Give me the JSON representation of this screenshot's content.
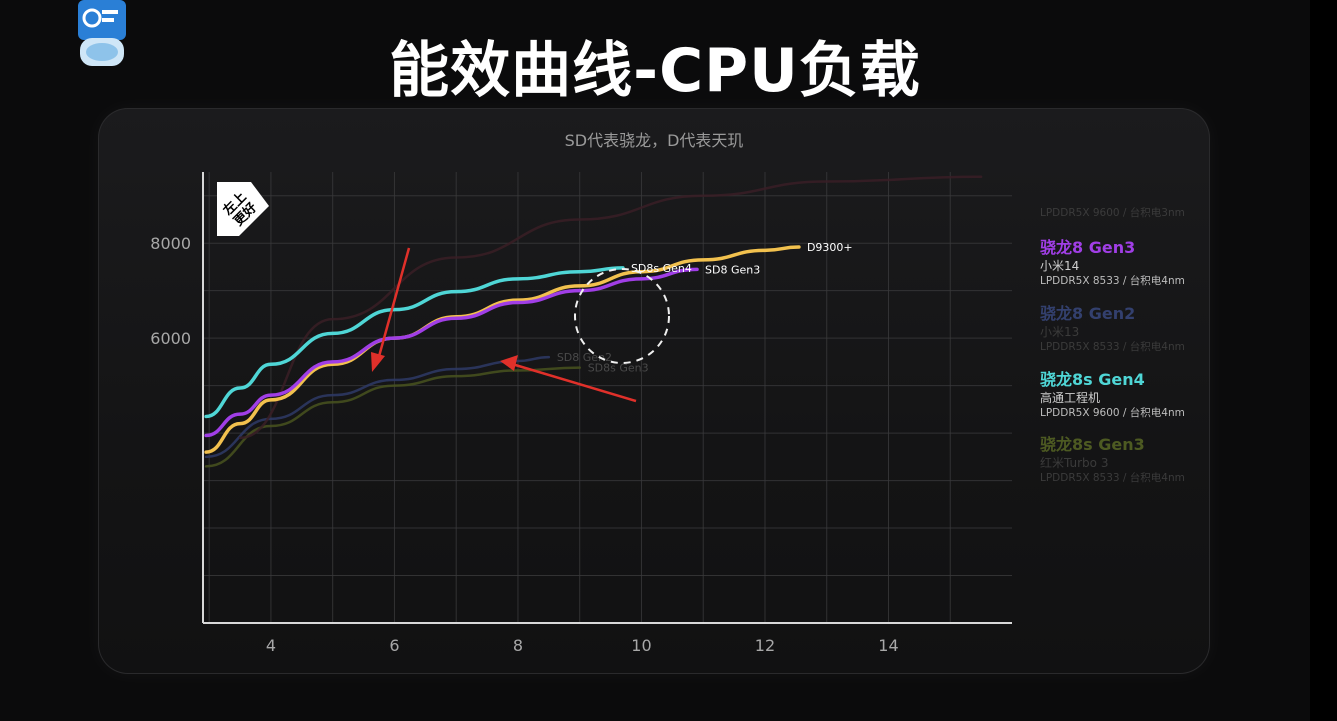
{
  "title": "能效曲线-CPU负载",
  "subtitle": "SD代表骁龙，D代表天玑",
  "badge": "左上\n更好",
  "colors": {
    "d9300": "#f2c14e",
    "sd8gen3": "#a03ee6",
    "sd8gen2": "#3a4a8c",
    "sd8sgen4": "#4fd6d6",
    "sd8sgen3": "#5c6a2a",
    "arrow": "#e0302a",
    "grid": "#3a3a3c"
  },
  "legend": [
    {
      "name": "",
      "device": "",
      "spec": "LPDDR5X 9600 / 台积电3nm",
      "color": "#4a2a32",
      "faded": true
    },
    {
      "name": "骁龙8 Gen3",
      "device": "小米14",
      "spec": "LPDDR5X 8533 / 台积电4nm",
      "color": "#a03ee6",
      "faded": false
    },
    {
      "name": "骁龙8 Gen2",
      "device": "小米13",
      "spec": "LPDDR5X 8533 / 台积电4nm",
      "color": "#33406e",
      "faded": true
    },
    {
      "name": "骁龙8s Gen4",
      "device": "高通工程机",
      "spec": "LPDDR5X 9600 / 台积电4nm",
      "color": "#4fd6d6",
      "faded": false
    },
    {
      "name": "骁龙8s Gen3",
      "device": "红米Turbo 3",
      "spec": "LPDDR5X 8533 / 台积电4nm",
      "color": "#4d5a22",
      "faded": true
    }
  ],
  "chart_data": {
    "type": "line",
    "title": "能效曲线-CPU负载",
    "subtitle": "SD代表骁龙，D代表天玑",
    "xlabel": "",
    "ylabel": "",
    "xlim": [
      2.9,
      16
    ],
    "ylim": [
      0,
      9500
    ],
    "x_ticks": [
      4,
      6,
      8,
      10,
      12,
      14
    ],
    "y_ticks": [
      6000,
      8000
    ],
    "grid": true,
    "series": [
      {
        "name": "D9300+",
        "color": "#f2c14e",
        "highlight": true,
        "x": [
          2.95,
          3.5,
          4,
          5,
          6,
          7,
          8,
          9,
          10,
          11,
          12,
          12.55
        ],
        "y": [
          3600,
          4200,
          4700,
          5450,
          6000,
          6450,
          6800,
          7100,
          7400,
          7650,
          7850,
          7920
        ]
      },
      {
        "name": "SD8 Gen3",
        "color": "#a03ee6",
        "highlight": true,
        "x": [
          2.95,
          3.5,
          4,
          5,
          6,
          7,
          8,
          9,
          10,
          10.9
        ],
        "y": [
          3950,
          4400,
          4800,
          5500,
          6000,
          6420,
          6750,
          7000,
          7250,
          7450
        ]
      },
      {
        "name": "SD8s Gen4",
        "color": "#4fd6d6",
        "highlight": true,
        "x": [
          2.95,
          3.5,
          4,
          5,
          6,
          7,
          8,
          9,
          9.7
        ],
        "y": [
          4350,
          4950,
          5450,
          6100,
          6600,
          6980,
          7250,
          7400,
          7480
        ]
      },
      {
        "name": "SD8 Gen2",
        "color": "#2e3a66",
        "highlight": false,
        "x": [
          2.95,
          4,
          5,
          6,
          7,
          8,
          8.5
        ],
        "y": [
          3500,
          4300,
          4800,
          5120,
          5350,
          5520,
          5600
        ]
      },
      {
        "name": "SD8s Gen3",
        "color": "#48521e",
        "highlight": false,
        "x": [
          2.95,
          4,
          5,
          6,
          7,
          8,
          9
        ],
        "y": [
          3300,
          4150,
          4650,
          5000,
          5200,
          5320,
          5380
        ]
      },
      {
        "name": "",
        "color": "#3a1e26",
        "highlight": false,
        "x": [
          3.5,
          5,
          7,
          9,
          11,
          13,
          15.5
        ],
        "y": [
          3900,
          6400,
          7700,
          8500,
          9000,
          9300,
          9400
        ]
      }
    ]
  }
}
